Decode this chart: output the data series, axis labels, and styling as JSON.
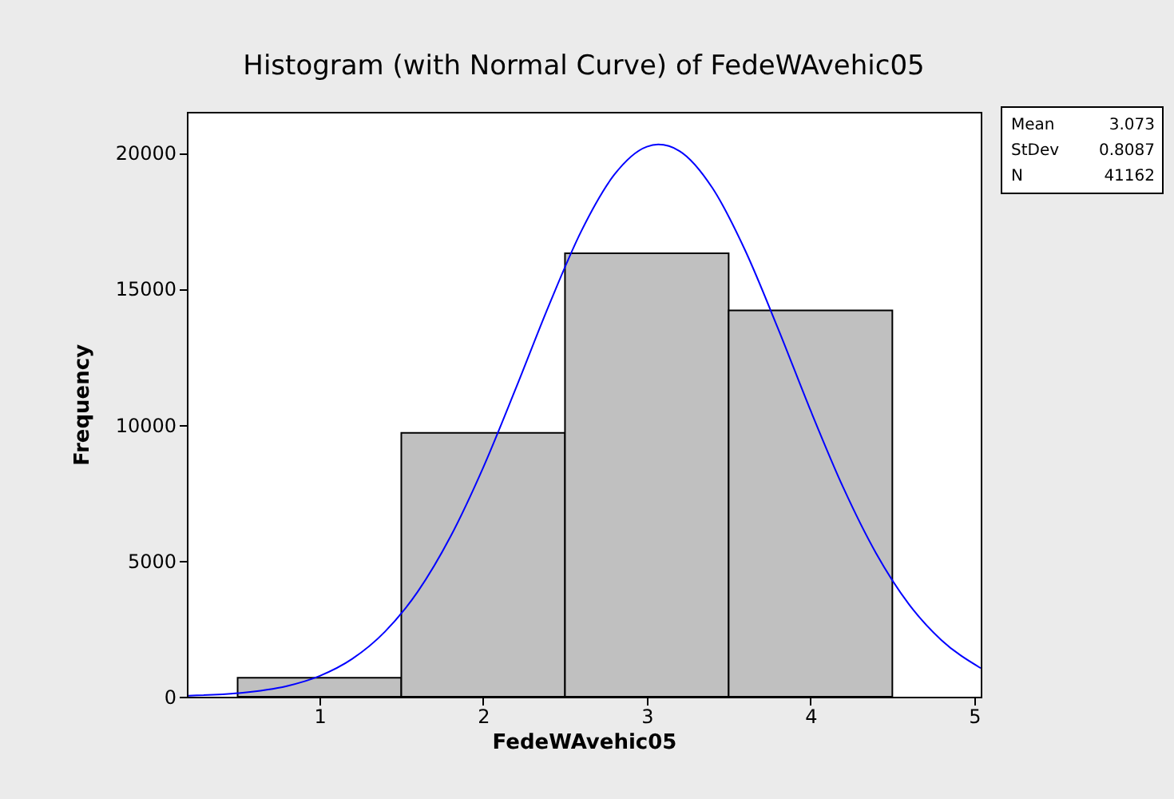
{
  "chart_data": {
    "type": "histogram",
    "title": "Histogram (with Normal Curve) of FedeWAvehic05",
    "xlabel": "FedeWAvehic05",
    "ylabel": "Frequency",
    "bins": [
      0.5,
      1.5,
      2.5,
      3.5,
      4.5
    ],
    "values": [
      700,
      9700,
      16300,
      14200
    ],
    "color": "#c0c0c0",
    "series": [
      {
        "type": "line",
        "color": "#0000ff",
        "x": [
          0.2,
          0.5,
          0.8,
          1.0,
          1.2,
          1.4,
          1.6,
          1.8,
          2.0,
          2.2,
          2.4,
          2.6,
          2.8,
          3.0,
          3.07,
          3.2,
          3.4,
          3.6,
          3.8,
          4.0,
          4.2,
          4.4,
          4.6,
          4.8,
          5.04
        ],
        "values": [
          40,
          130,
          390,
          760,
          1390,
          2390,
          3860,
          5880,
          8420,
          11340,
          14360,
          17120,
          19180,
          20220,
          20300,
          20060,
          18710,
          16420,
          13560,
          10530,
          7690,
          5280,
          3410,
          2080,
          1050
        ]
      }
    ],
    "xlim": [
      0.19,
      5.04
    ],
    "xticks": [
      1,
      2,
      3,
      4,
      5
    ],
    "ylim": [
      0,
      21500
    ],
    "yticks": [
      0,
      5000,
      10000,
      15000,
      20000
    ],
    "grid": false,
    "annotations": [
      "Mean",
      "3.073",
      "StDev",
      "0.8087",
      "N",
      "41162"
    ]
  }
}
